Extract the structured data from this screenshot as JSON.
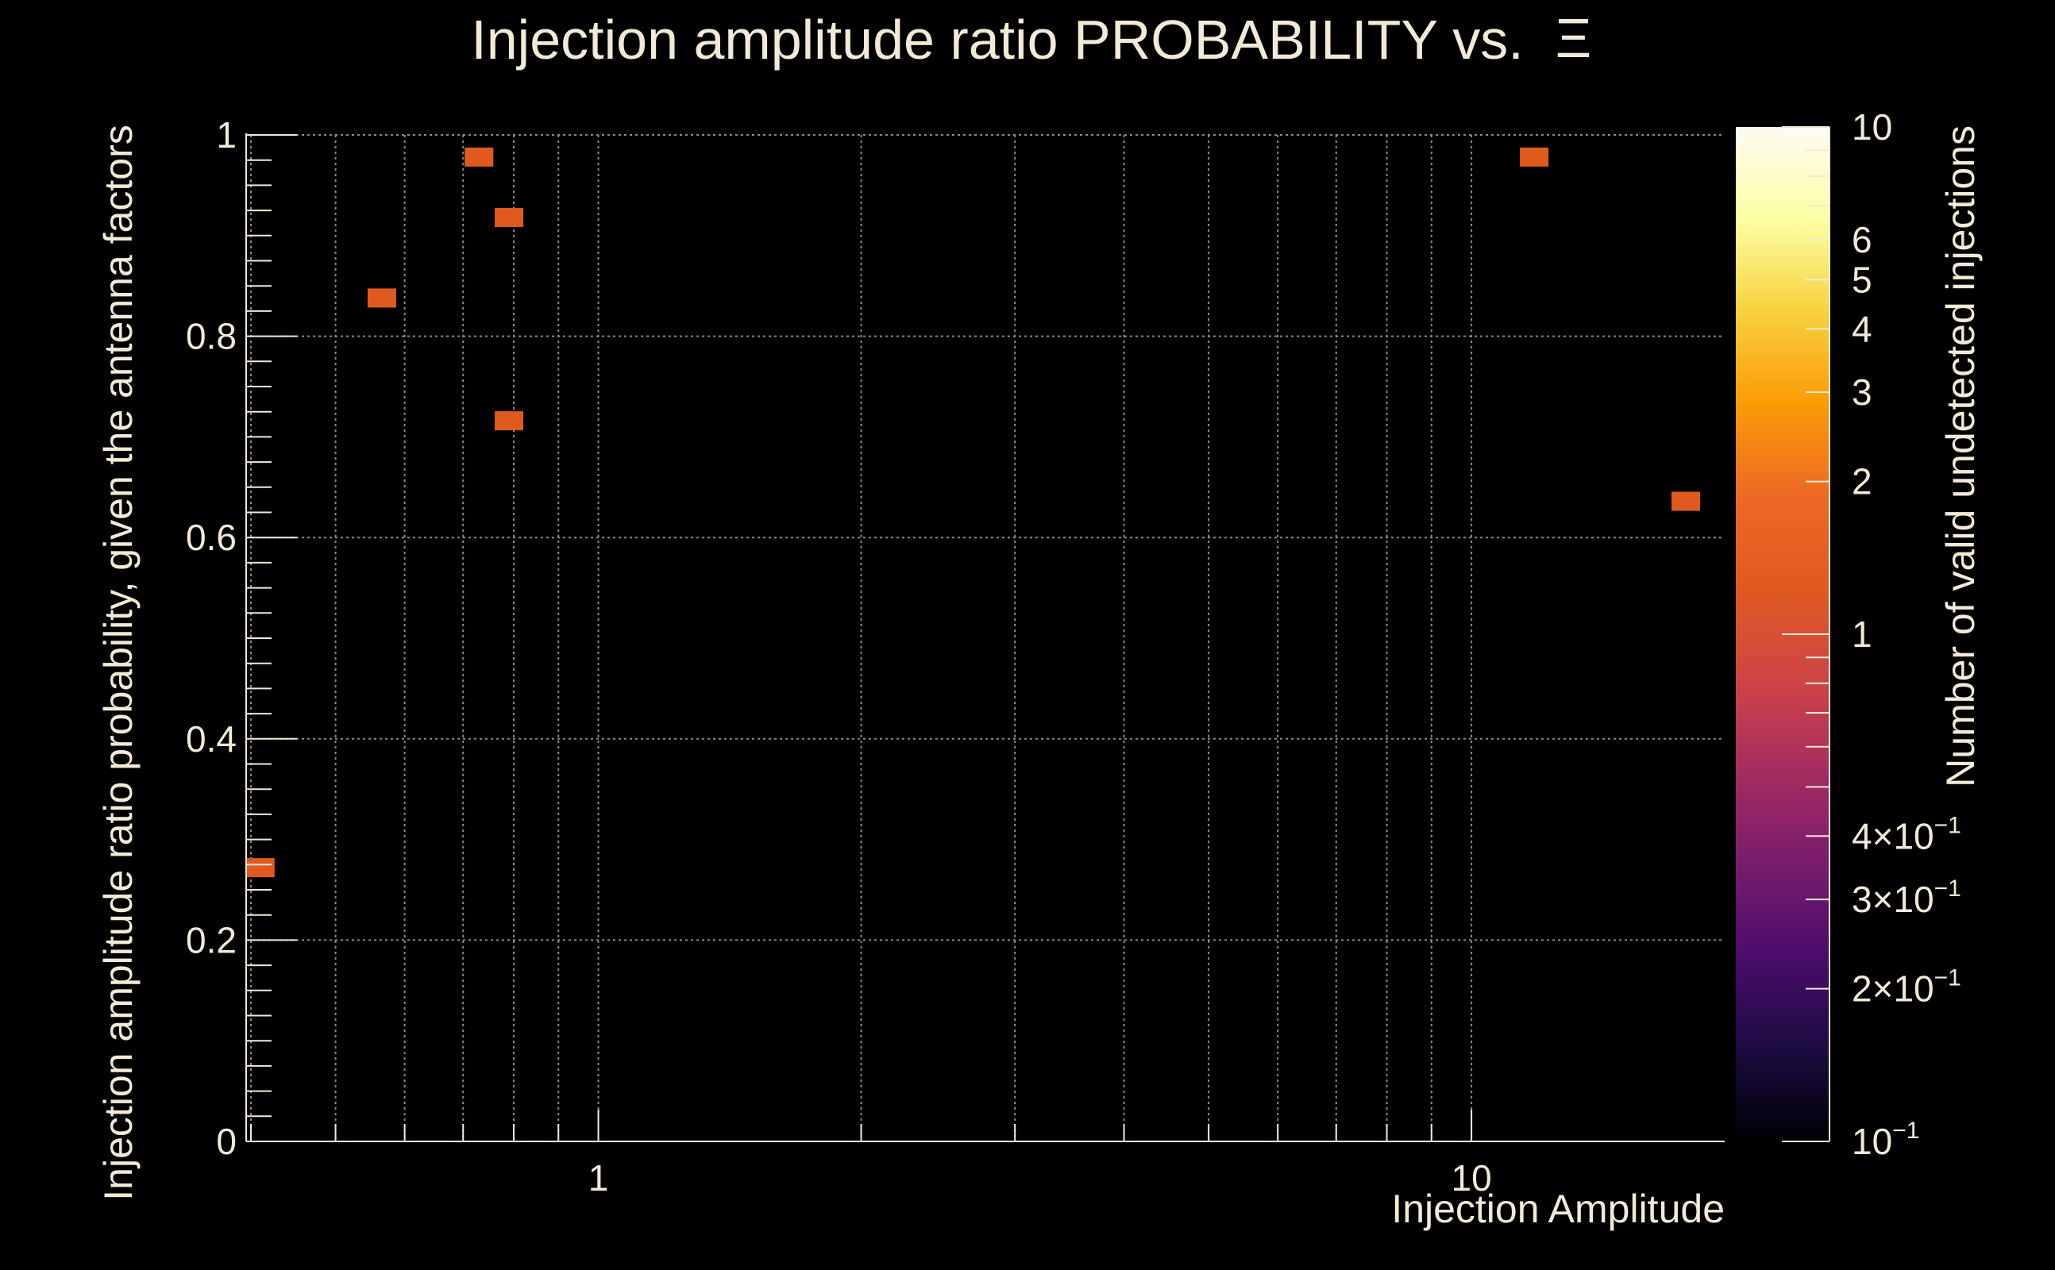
{
  "chart_data": {
    "type": "heatmap",
    "title": "Injection amplitude ratio PROBABILITY vs.",
    "title_symbol": "Ξ",
    "xlabel": "Injection Amplitude",
    "ylabel": "Injection amplitude ratio probability, given the antenna factors",
    "xscale": "log",
    "xlim": [
      0.395,
      19.5
    ],
    "ylim": [
      0,
      1
    ],
    "x_tick_labels": [
      "1",
      "10"
    ],
    "x_ticks": [
      1,
      10
    ],
    "y_tick_labels": [
      "0",
      "0.2",
      "0.4",
      "0.6",
      "0.8",
      "1"
    ],
    "y_ticks": [
      0,
      0.2,
      0.4,
      0.6,
      0.8,
      1
    ],
    "grid": true,
    "colorbar": {
      "label": "Number of valid undetected injections",
      "scale": "log",
      "range": [
        0.1,
        10
      ],
      "labels": [
        {
          "value": 10,
          "text": "10"
        },
        {
          "value": 6,
          "text": "6"
        },
        {
          "value": 5,
          "text": "5"
        },
        {
          "value": 4,
          "text": "4"
        },
        {
          "value": 3,
          "text": "3"
        },
        {
          "value": 2,
          "text": "2"
        },
        {
          "value": 1,
          "text": "1"
        },
        {
          "value": 0.4,
          "mant": "4",
          "text": "4×10",
          "exp": "−1"
        },
        {
          "value": 0.3,
          "mant": "3",
          "text": "3×10",
          "exp": "−1"
        },
        {
          "value": 0.2,
          "mant": "2",
          "text": "2×10",
          "exp": "−1"
        },
        {
          "value": 0.1,
          "text": "10",
          "exp": "−1"
        }
      ],
      "colors": [
        "#000004",
        "#1b0c41",
        "#4a0c6b",
        "#781c6d",
        "#a52c60",
        "#cf4446",
        "#e05a20",
        "#ed6925",
        "#fb9b06",
        "#f7d13d",
        "#fcffa4",
        "#fdfbf3"
      ]
    },
    "points": [
      {
        "x": 0.41,
        "y": 0.272,
        "count": 1
      },
      {
        "x": 0.565,
        "y": 0.838,
        "count": 1
      },
      {
        "x": 0.73,
        "y": 0.978,
        "count": 1
      },
      {
        "x": 0.79,
        "y": 0.918,
        "count": 1
      },
      {
        "x": 0.79,
        "y": 0.716,
        "count": 1
      },
      {
        "x": 11.8,
        "y": 0.978,
        "count": 1
      },
      {
        "x": 17.6,
        "y": 0.636,
        "count": 1
      }
    ],
    "cell_color": "#e05a1e"
  }
}
